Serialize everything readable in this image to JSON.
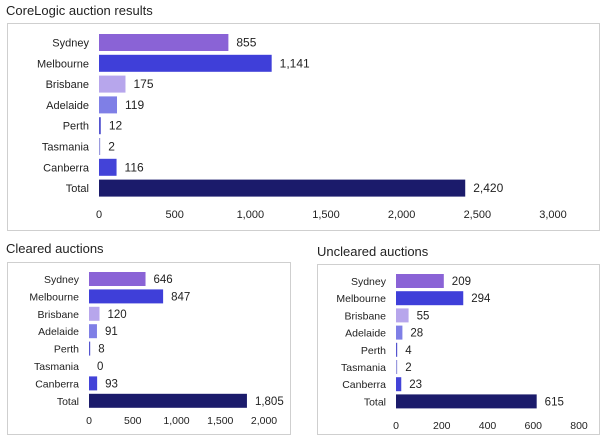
{
  "chart_data": [
    {
      "type": "bar",
      "orientation": "horizontal",
      "title": "CoreLogic auction results",
      "categories": [
        "Sydney",
        "Melbourne",
        "Brisbane",
        "Adelaide",
        "Perth",
        "Tasmania",
        "Canberra",
        "Total"
      ],
      "values": [
        855,
        1141,
        175,
        119,
        12,
        2,
        116,
        2420
      ],
      "value_labels": [
        "855",
        "1,141",
        "175",
        "119",
        "12",
        "2",
        "116",
        "2,420"
      ],
      "ticks": [
        0,
        500,
        1000,
        1500,
        2000,
        2500,
        3000
      ],
      "tick_labels": [
        "0",
        "500",
        "1,000",
        "1,500",
        "2,000",
        "2,500",
        "3,000"
      ],
      "xlim": [
        0,
        3000
      ],
      "grid": false
    },
    {
      "type": "bar",
      "orientation": "horizontal",
      "title": "Cleared auctions",
      "categories": [
        "Sydney",
        "Melbourne",
        "Brisbane",
        "Adelaide",
        "Perth",
        "Tasmania",
        "Canberra",
        "Total"
      ],
      "values": [
        646,
        847,
        120,
        91,
        8,
        0,
        93,
        1805
      ],
      "value_labels": [
        "646",
        "847",
        "120",
        "91",
        "8",
        "0",
        "93",
        "1,805"
      ],
      "ticks": [
        0,
        500,
        1000,
        1500,
        2000
      ],
      "tick_labels": [
        "0",
        "500",
        "1,000",
        "1,500",
        "2,000"
      ],
      "xlim": [
        0,
        2000
      ],
      "grid": false
    },
    {
      "type": "bar",
      "orientation": "horizontal",
      "title": "Uncleared auctions",
      "categories": [
        "Sydney",
        "Melbourne",
        "Brisbane",
        "Adelaide",
        "Perth",
        "Tasmania",
        "Canberra",
        "Total"
      ],
      "values": [
        209,
        294,
        55,
        28,
        4,
        2,
        23,
        615
      ],
      "value_labels": [
        "209",
        "294",
        "55",
        "28",
        "4",
        "2",
        "23",
        "615"
      ],
      "ticks": [
        0,
        200,
        400,
        600,
        800
      ],
      "tick_labels": [
        "0",
        "200",
        "400",
        "600",
        "800"
      ],
      "xlim": [
        0,
        800
      ],
      "grid": false
    }
  ],
  "colors": {
    "Sydney": "#8a63d6",
    "Melbourne": "#3f3fd9",
    "Brisbane": "#b7a6ec",
    "Adelaide": "#7f7fe6",
    "Perth": "#5454cf",
    "Tasmania": "#9a9ade",
    "Canberra": "#4343d8",
    "Total": "#1b1b6b"
  }
}
